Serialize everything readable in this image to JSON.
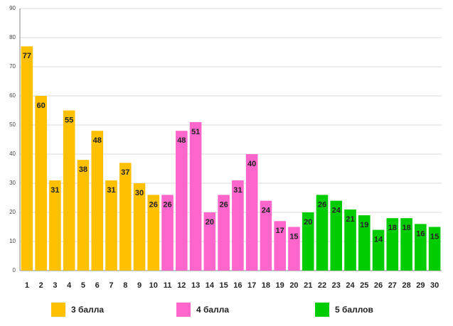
{
  "chart_data": {
    "type": "bar",
    "categories": [
      "1",
      "2",
      "3",
      "4",
      "5",
      "6",
      "7",
      "8",
      "9",
      "10",
      "11",
      "12",
      "13",
      "14",
      "15",
      "16",
      "17",
      "18",
      "19",
      "20",
      "21",
      "22",
      "23",
      "24",
      "25",
      "26",
      "27",
      "28",
      "29",
      "30"
    ],
    "series": [
      {
        "name": "3 балла",
        "color": "#ffc000",
        "values": [
          77,
          60,
          31,
          55,
          38,
          48,
          31,
          37,
          30,
          26,
          null,
          null,
          null,
          null,
          null,
          null,
          null,
          null,
          null,
          null,
          null,
          null,
          null,
          null,
          null,
          null,
          null,
          null,
          null,
          null
        ]
      },
      {
        "name": "4 балла",
        "color": "#ff66cc",
        "values": [
          null,
          null,
          null,
          null,
          null,
          null,
          null,
          null,
          null,
          null,
          26,
          48,
          51,
          20,
          26,
          31,
          40,
          24,
          17,
          15,
          null,
          null,
          null,
          null,
          null,
          null,
          null,
          null,
          null,
          null
        ]
      },
      {
        "name": "5 баллов",
        "color": "#00cc00",
        "values": [
          null,
          null,
          null,
          null,
          null,
          null,
          null,
          null,
          null,
          null,
          null,
          null,
          null,
          null,
          null,
          null,
          null,
          null,
          null,
          null,
          20,
          26,
          24,
          21,
          19,
          14,
          18,
          18,
          16,
          15
        ]
      }
    ],
    "ylim": [
      0,
      90
    ],
    "yticks": [
      0,
      10,
      20,
      30,
      40,
      50,
      60,
      70,
      80,
      90
    ],
    "grid": true
  }
}
